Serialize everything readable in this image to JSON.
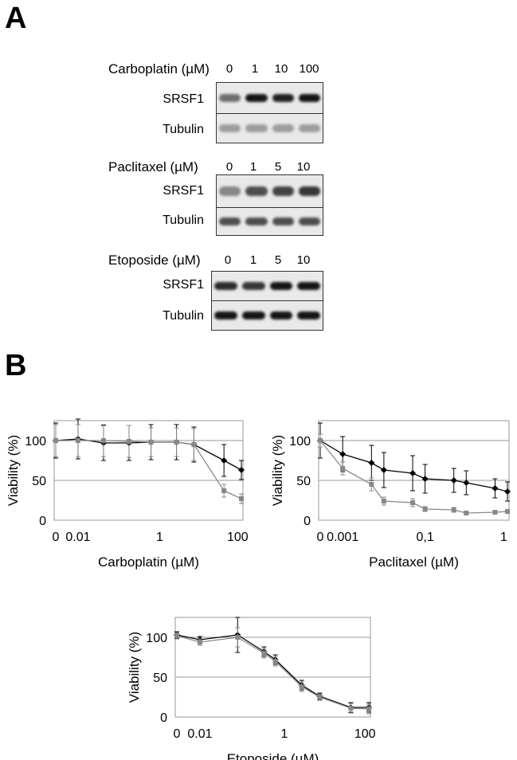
{
  "figure": {
    "panel_a_label": "A",
    "panel_b_label": "B"
  },
  "blots": [
    {
      "drug_label": "Carboplatin (µM)",
      "doses": [
        "0",
        "1",
        "10",
        "100"
      ],
      "rows": [
        {
          "label": "SRSF1",
          "intensity": [
            0.55,
            0.95,
            0.9,
            0.95
          ]
        },
        {
          "label": "Tubulin",
          "intensity": [
            0.35,
            0.35,
            0.35,
            0.35
          ]
        }
      ]
    },
    {
      "drug_label": "Paclitaxel (µM)",
      "doses": [
        "0",
        "1",
        "5",
        "10"
      ],
      "rows": [
        {
          "label": "SRSF1",
          "intensity": [
            0.45,
            0.7,
            0.75,
            0.8
          ]
        },
        {
          "label": "Tubulin",
          "intensity": [
            0.7,
            0.7,
            0.7,
            0.7
          ]
        }
      ]
    },
    {
      "drug_label": "Etoposide (µM)",
      "doses": [
        "0",
        "1",
        "5",
        "10"
      ],
      "rows": [
        {
          "label": "SRSF1",
          "intensity": [
            0.85,
            0.8,
            0.95,
            0.95
          ]
        },
        {
          "label": "Tubulin",
          "intensity": [
            0.95,
            0.95,
            0.95,
            0.95
          ]
        }
      ]
    }
  ],
  "chart_data": [
    {
      "type": "line",
      "title": "",
      "xlabel": "Carboplatin (µM)",
      "ylabel": "Viability (%)",
      "x_scale": "log",
      "x_tick_labels": [
        "0",
        "0.01",
        "1",
        "100"
      ],
      "ylim": [
        0,
        125
      ],
      "y_ticks": [
        0,
        50,
        100
      ],
      "grid": "horizontal",
      "series": [
        {
          "color": "#000000",
          "x": [
            0,
            0.01,
            0.05,
            0.25,
            1,
            5,
            15,
            100,
            300
          ],
          "y": [
            100,
            102,
            97,
            97,
            98,
            98,
            95,
            75,
            63
          ],
          "err": [
            22,
            25,
            22,
            22,
            22,
            22,
            22,
            20,
            12
          ]
        },
        {
          "color": "#888888",
          "x": [
            0,
            0.01,
            0.05,
            0.25,
            1,
            5,
            15,
            100,
            300
          ],
          "y": [
            100,
            100,
            100,
            99,
            98,
            98,
            95,
            37,
            27
          ],
          "err": [
            20,
            20,
            20,
            20,
            18,
            18,
            20,
            8,
            6
          ]
        }
      ]
    },
    {
      "type": "line",
      "title": "",
      "xlabel": "Paclitaxel (µM)",
      "ylabel": "Viability (%)",
      "x_scale": "log",
      "x_tick_labels": [
        "0",
        "0.001",
        "0,1",
        "1"
      ],
      "ylim": [
        0,
        125
      ],
      "y_ticks": [
        0,
        50,
        100
      ],
      "grid": "horizontal",
      "series": [
        {
          "color": "#000000",
          "x": [
            0,
            0.0001,
            0.0005,
            0.001,
            0.005,
            0.01,
            0.05,
            0.1,
            0.5,
            1
          ],
          "y": [
            100,
            83,
            72,
            63,
            59,
            52,
            50,
            47,
            40,
            36
          ],
          "err": [
            22,
            22,
            22,
            22,
            22,
            18,
            15,
            15,
            12,
            12
          ]
        },
        {
          "color": "#888888",
          "x": [
            0,
            0.0001,
            0.0005,
            0.001,
            0.005,
            0.01,
            0.05,
            0.1,
            0.5,
            1
          ],
          "y": [
            100,
            65,
            45,
            24,
            22,
            14,
            13,
            9,
            10,
            11
          ],
          "err": [
            8,
            8,
            8,
            5,
            5,
            3,
            3,
            2,
            2,
            2
          ]
        }
      ]
    },
    {
      "type": "line",
      "title": "",
      "xlabel": "Etoposide (µM)",
      "ylabel": "Viability (%)",
      "x_scale": "log",
      "x_tick_labels": [
        "0",
        "0.01",
        "1",
        "100"
      ],
      "ylim": [
        0,
        125
      ],
      "y_ticks": [
        0,
        50,
        100
      ],
      "grid": "horizontal",
      "series": [
        {
          "color": "#000000",
          "x": [
            0,
            0.01,
            0.1,
            0.5,
            1,
            5,
            15,
            100,
            300
          ],
          "y": [
            103,
            97,
            103,
            82,
            72,
            40,
            26,
            12,
            12
          ],
          "err": [
            4,
            4,
            22,
            6,
            6,
            6,
            4,
            6,
            6
          ]
        },
        {
          "color": "#888888",
          "x": [
            0,
            0.01,
            0.1,
            0.5,
            1,
            5,
            15,
            100,
            300
          ],
          "y": [
            102,
            94,
            100,
            80,
            70,
            38,
            25,
            11,
            10
          ],
          "err": [
            4,
            4,
            12,
            6,
            6,
            6,
            4,
            6,
            6
          ]
        }
      ]
    }
  ]
}
